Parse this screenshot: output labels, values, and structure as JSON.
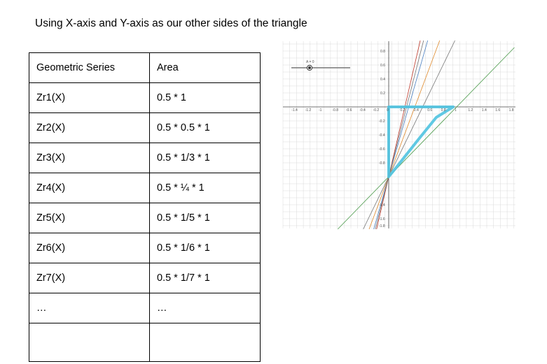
{
  "heading": "Using X-axis and Y-axis as our other sides of the triangle",
  "table": {
    "headers": [
      "Geometric Series",
      "Area"
    ],
    "rows": [
      [
        "Zr1(X)",
        "0.5 * 1"
      ],
      [
        "Zr2(X)",
        "0.5 * 0.5 * 1"
      ],
      [
        "Zr3(X)",
        "0.5 * 1/3 * 1"
      ],
      [
        "Zr4(X)",
        "0.5 * ¼ * 1"
      ],
      [
        "Zr5(X)",
        "0.5 * 1/5 * 1"
      ],
      [
        "Zr6(X)",
        "0.5 * 1/6 * 1"
      ],
      [
        "Zr7(X)",
        "0.5 * 1/7 * 1"
      ],
      [
        "…",
        "…"
      ],
      [
        "",
        ""
      ]
    ]
  },
  "graph": {
    "slider_label": "A = 0",
    "x_ticks": [
      "-1.4",
      "-1.2",
      "-1",
      "-0.8",
      "-0.6",
      "-0.4",
      "-0.2",
      "0",
      "0.2",
      "0.4",
      "0.6",
      "0.8",
      "1",
      "1.2",
      "1.4",
      "1.6",
      "1.8"
    ],
    "y_ticks_pos": [
      "0.8",
      "0.6",
      "0.4",
      "0.2"
    ],
    "y_ticks_neg": [
      "-0.2",
      "-0.4",
      "-0.6",
      "-0.8",
      "-1.4",
      "-1.6",
      "-1.8"
    ],
    "colors": {
      "grid": "#d9d9d9",
      "axes": "#000000",
      "highlight": "#4fc3e0",
      "green": "#4a9a4a",
      "red": "#c0392b",
      "blue": "#4a7fc1",
      "orange": "#e08a2c",
      "gray": "#777777"
    }
  }
}
